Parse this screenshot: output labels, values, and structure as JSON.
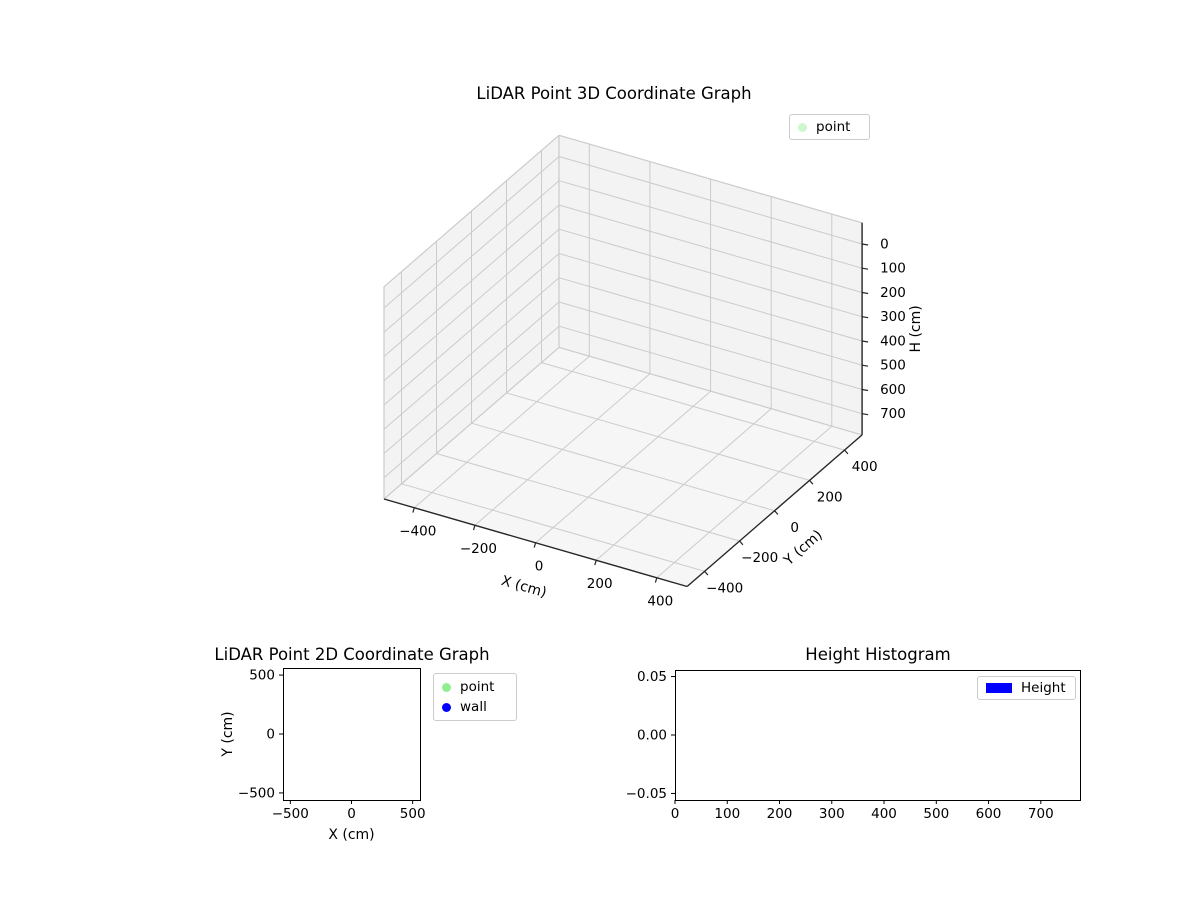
{
  "chart_data": [
    {
      "id": "plot3d",
      "type": "scatter",
      "projection": "3d",
      "title": "LiDAR Point 3D Coordinate Graph",
      "xlabel": "X (cm)",
      "ylabel": "Y (cm)",
      "zlabel": "H (cm)",
      "xlim": [
        -500,
        500
      ],
      "ylim": [
        -500,
        500
      ],
      "zlim": [
        -87.5,
        787.5
      ],
      "zaxis_inverted": true,
      "xticks": [
        -400,
        -200,
        0,
        200,
        400
      ],
      "xtick_labels": [
        "−400",
        "−200",
        "0",
        "200",
        "400"
      ],
      "yticks": [
        -400,
        -200,
        0,
        200,
        400
      ],
      "ytick_labels": [
        "−400",
        "−200",
        "0",
        "200",
        "400"
      ],
      "zticks": [
        0,
        100,
        200,
        300,
        400,
        500,
        600,
        700
      ],
      "ztick_labels": [
        "0",
        "100",
        "200",
        "300",
        "400",
        "500",
        "600",
        "700"
      ],
      "grid": true,
      "points": [],
      "legend": {
        "position": "upper-right-outside",
        "entries": [
          {
            "label": "point",
            "marker": "dot",
            "color": "rgba(144,238,144,0.45)"
          }
        ]
      },
      "view": {
        "elev": 30,
        "azim": -60
      },
      "colors": {
        "pane": "#f3f3f3",
        "floor": "#f6f6f6",
        "grid": "#cbcbcb",
        "axisline": "#262626"
      }
    },
    {
      "id": "plot2d",
      "type": "scatter",
      "title": "LiDAR Point 2D Coordinate Graph",
      "xlabel": "X (cm)",
      "ylabel": "Y (cm)",
      "xlim": [
        -560,
        560
      ],
      "ylim": [
        -560,
        560
      ],
      "xticks": [
        -500,
        0,
        500
      ],
      "xtick_labels": [
        "−500",
        "0",
        "500"
      ],
      "yticks": [
        500,
        0,
        -500
      ],
      "ytick_labels": [
        "500",
        "0",
        "−500"
      ],
      "grid": false,
      "points": [],
      "legend": {
        "position": "right-outside",
        "entries": [
          {
            "label": "point",
            "marker": "dot",
            "color": "#90EE90"
          },
          {
            "label": "wall",
            "marker": "dot",
            "color": "#0000FF"
          }
        ]
      }
    },
    {
      "id": "height-histogram",
      "type": "bar",
      "title": "Height Histogram",
      "xlabel": "",
      "ylabel": "",
      "xlim": [
        0,
        775
      ],
      "ylim": [
        -0.0556,
        0.0556
      ],
      "xticks": [
        0,
        100,
        200,
        300,
        400,
        500,
        600,
        700
      ],
      "xtick_labels": [
        "0",
        "100",
        "200",
        "300",
        "400",
        "500",
        "600",
        "700"
      ],
      "yticks": [
        0.05,
        0.0,
        -0.05
      ],
      "ytick_labels": [
        "0.05",
        "0.00",
        "−0.05"
      ],
      "grid": false,
      "values": [],
      "legend": {
        "position": "upper-right-inside",
        "entries": [
          {
            "label": "Height",
            "marker": "rect",
            "color": "#0000FF"
          }
        ]
      }
    }
  ]
}
